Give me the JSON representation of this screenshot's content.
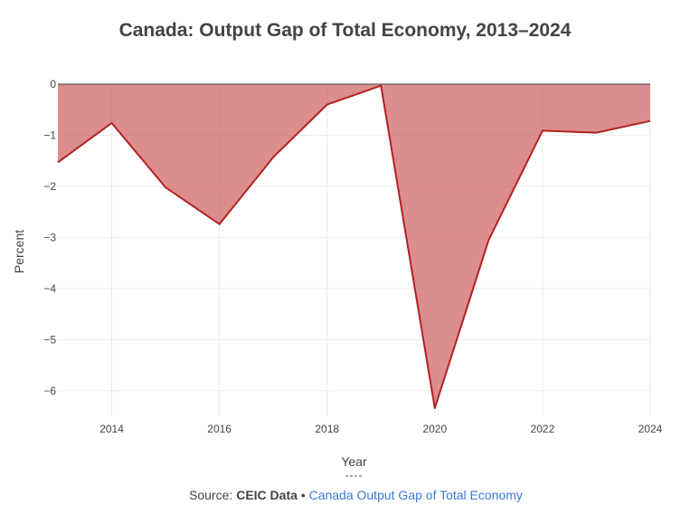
{
  "chart_data": {
    "type": "area",
    "title": "Canada: Output Gap of Total Economy, 2013–2024",
    "xlabel": "Year",
    "ylabel": "Percent",
    "x": [
      2013,
      2014,
      2015,
      2016,
      2017,
      2018,
      2019,
      2020,
      2021,
      2022,
      2023,
      2024
    ],
    "series": [
      {
        "values": [
          -1.53,
          -0.76,
          -2.02,
          -2.74,
          -1.43,
          -0.4,
          -0.03,
          -6.34,
          -3.05,
          -0.91,
          -0.95,
          -0.72
        ]
      }
    ],
    "xlim": [
      2013,
      2024
    ],
    "ylim": [
      -6.5,
      0
    ],
    "xticks": [
      2014,
      2016,
      2018,
      2020,
      2022,
      2024
    ],
    "yticks": [
      0,
      -1,
      -2,
      -3,
      -4,
      -5,
      -6
    ],
    "grid": true,
    "colors": {
      "line": "#b22222",
      "fill": "#cd5c5c"
    }
  },
  "footer": {
    "divider": "----",
    "source_prefix": "Source: ",
    "source_name": "CEIC Data",
    "separator": " • ",
    "link_text": "Canada Output Gap of Total Economy"
  }
}
